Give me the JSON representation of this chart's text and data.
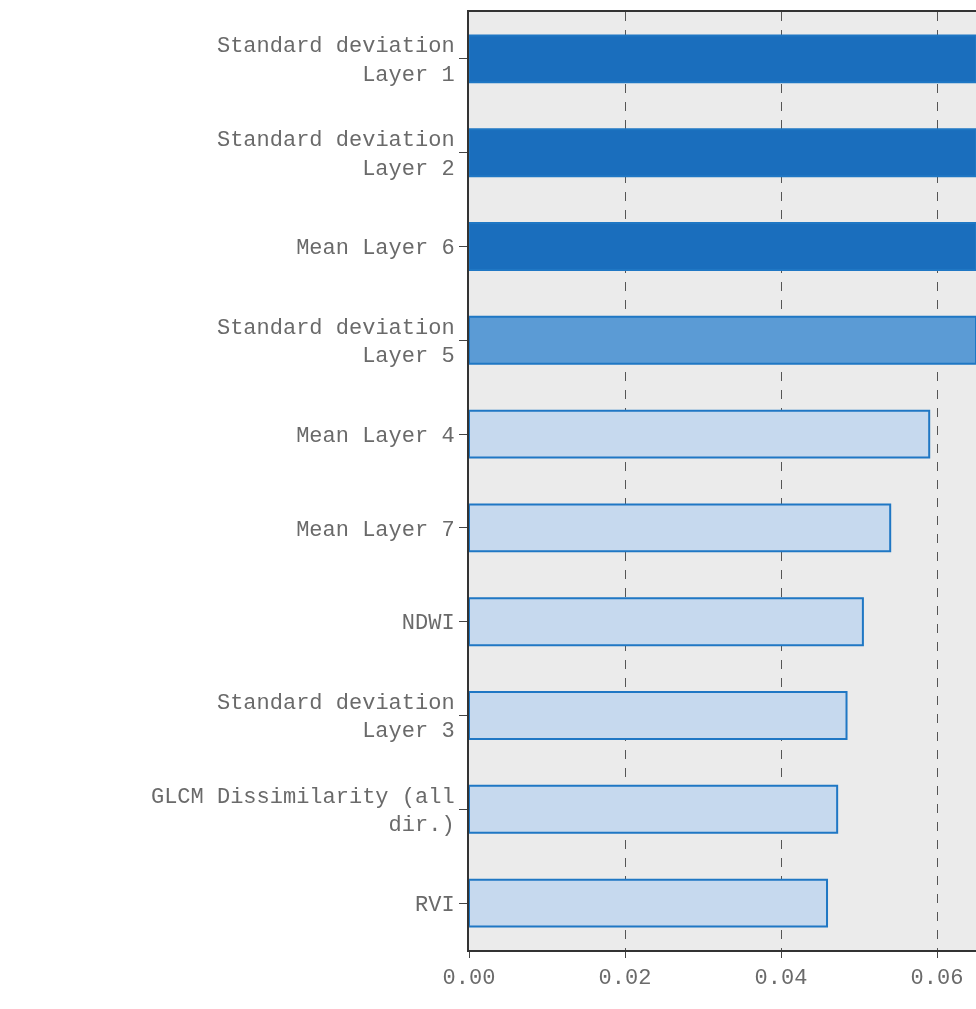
{
  "chart_data": {
    "type": "bar",
    "orientation": "horizontal",
    "categories": [
      "Standard deviation Layer 1",
      "Standard deviation Layer 2",
      "Mean Layer 6",
      "Standard deviation Layer 5",
      "Mean Layer 4",
      "Mean Layer 7",
      "NDWI",
      "Standard deviation Layer 3",
      "GLCM Dissimilarity (all dir.)",
      "RVI"
    ],
    "values": [
      0.065,
      0.065,
      0.065,
      0.065,
      0.059,
      0.054,
      0.0505,
      0.0484,
      0.0472,
      0.0459
    ],
    "colors": [
      "#1a6ebd",
      "#1a6ebd",
      "#1a6ebd",
      "#5b9bd5",
      "#c6d9ee",
      "#c6d9ee",
      "#c6d9ee",
      "#c6d9ee",
      "#c6d9ee",
      "#c6d9ee"
    ],
    "xlim": [
      0,
      0.065
    ],
    "xticks": [
      {
        "value": 0,
        "label": "0.00"
      },
      {
        "value": 0.02,
        "label": "0.02"
      },
      {
        "value": 0.04,
        "label": "0.04"
      },
      {
        "value": 0.06,
        "label": "0.06"
      }
    ],
    "grid": "x"
  }
}
